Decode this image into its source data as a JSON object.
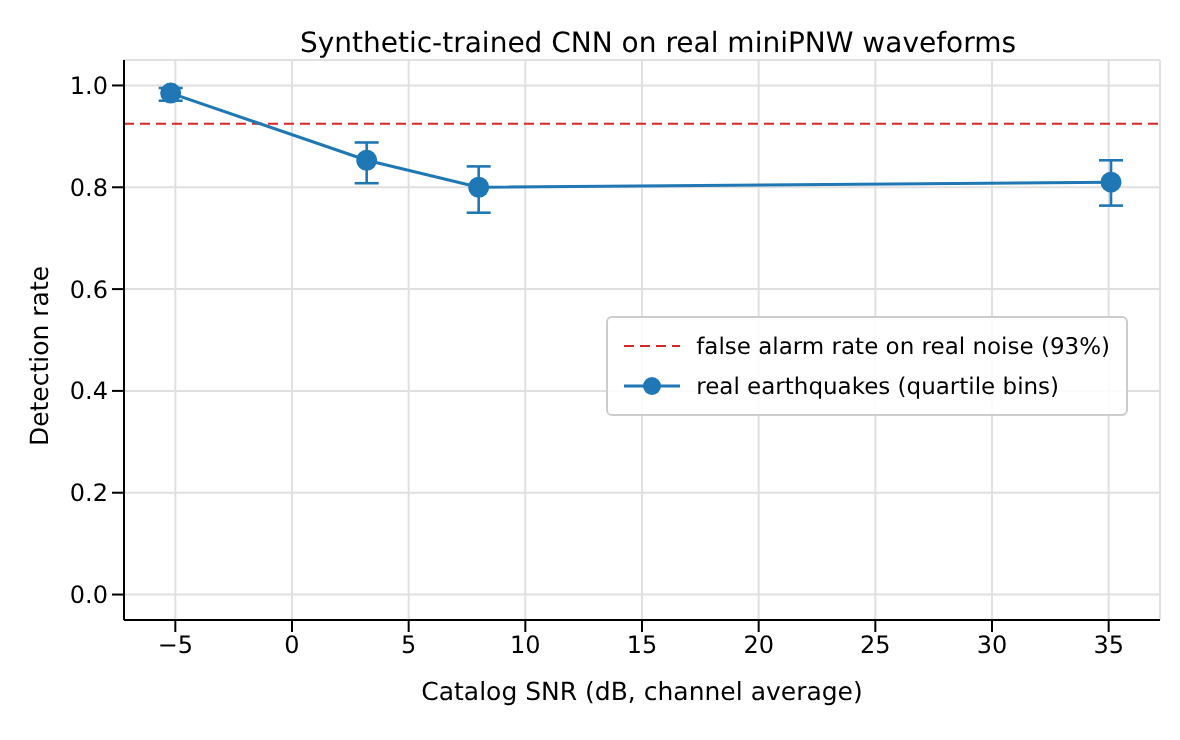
{
  "chart_data": {
    "type": "line",
    "title": "Synthetic-trained CNN on real miniPNW waveforms",
    "xlabel": "Catalog SNR (dB, channel average)",
    "ylabel": "Detection rate",
    "x": [
      -5.2,
      3.2,
      8.0,
      35.1
    ],
    "series": [
      {
        "name": "real earthquakes (quartile bins)",
        "color": "#1f77b4",
        "values": [
          0.985,
          0.853,
          0.8,
          0.81
        ],
        "errors": [
          [
            0.97,
            0.995
          ],
          [
            0.808,
            0.888
          ],
          [
            0.75,
            0.841
          ],
          [
            0.764,
            0.853
          ]
        ]
      }
    ],
    "ref_lines": [
      {
        "axis": "y",
        "value": 0.925,
        "label": "false alarm rate on real noise (93%)",
        "color": "#d62728",
        "line_style": "dashed"
      }
    ],
    "xlim": [
      -7.2,
      37.2
    ],
    "xticks": [
      {
        "value": -5,
        "label": "−5"
      },
      0,
      5,
      10,
      15,
      20,
      25,
      30,
      35
    ],
    "ylim": [
      -0.05,
      1.05
    ],
    "yticks": [
      {
        "value": 0,
        "label": "0.0"
      },
      {
        "value": 0.2,
        "label": "0.2"
      },
      {
        "value": 0.4,
        "label": "0.4"
      },
      {
        "value": 0.6,
        "label": "0.6"
      },
      {
        "value": 0.8,
        "label": "0.8"
      },
      {
        "value": 1,
        "label": "1.0"
      }
    ],
    "grid": true,
    "legend": "right",
    "marker": "circle",
    "line_style": "solid"
  }
}
